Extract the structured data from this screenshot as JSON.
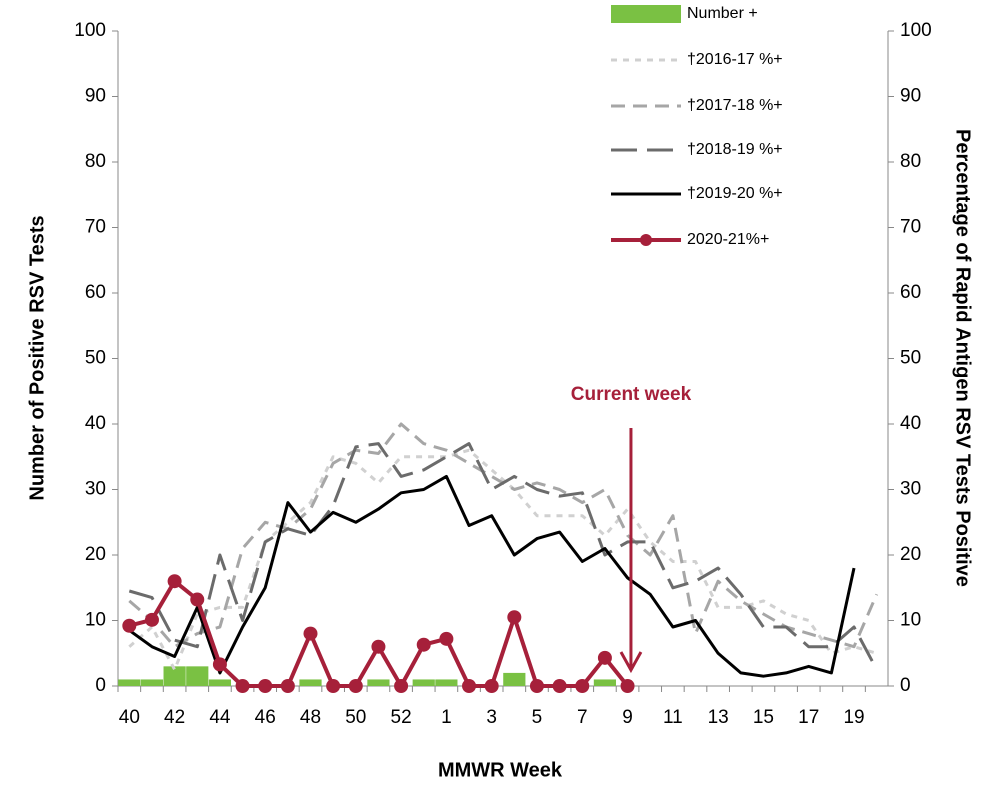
{
  "chart_data": {
    "type": "combo",
    "y_label": "Number of Positive RSV Tests",
    "y2_label": "Percentage of Rapid Antigen RSV Tests Positive",
    "x_label": "MMWR Week",
    "categories": [
      "40",
      null,
      "42",
      null,
      "44",
      null,
      "46",
      null,
      "48",
      null,
      "50",
      null,
      "52",
      null,
      "1",
      null,
      "3",
      null,
      "5",
      null,
      "7",
      null,
      "9",
      null,
      "11",
      null,
      "13",
      null,
      "15",
      null,
      "17",
      null,
      "19",
      null
    ],
    "ylim": [
      0,
      100
    ],
    "yticks": [
      0,
      10,
      20,
      30,
      40,
      50,
      60,
      70,
      80,
      90,
      100
    ],
    "y2lim": [
      0,
      100
    ],
    "y2ticks": [
      0,
      10,
      20,
      30,
      40,
      50,
      60,
      70,
      80,
      90,
      100
    ],
    "legend": "top-right",
    "annotation": {
      "text": "Current week",
      "x": "9",
      "color": "#a6203a"
    },
    "series": [
      {
        "name": "Number +",
        "type": "bar",
        "color": "#7ac143",
        "values": [
          1,
          1,
          3,
          3,
          1,
          0,
          0,
          0,
          1,
          0,
          0,
          1,
          0,
          1,
          1,
          0,
          0,
          2,
          0,
          0,
          0,
          1,
          0,
          null,
          null,
          null,
          null,
          null,
          null,
          null,
          null,
          null,
          null,
          null
        ]
      },
      {
        "name": "†2016-17 %+",
        "type": "line",
        "axis": "y2",
        "color": "#d0d0d0",
        "line_style": "dotted",
        "values": [
          6,
          9,
          2.5,
          11,
          12,
          12,
          22,
          25,
          28,
          35,
          34,
          31,
          35,
          35,
          35,
          36,
          33,
          30,
          26,
          26,
          26,
          23,
          27,
          22,
          19,
          19,
          12,
          12,
          13,
          11,
          10,
          5,
          6,
          5
        ]
      },
      {
        "name": "†2017-18 %+",
        "type": "line",
        "axis": "y2",
        "color": "#a6a6a6",
        "line_style": "dashed",
        "values": [
          13,
          10,
          6,
          8,
          9,
          21,
          25,
          24,
          27,
          34,
          36,
          35.5,
          40,
          37,
          36,
          34,
          32,
          30,
          31,
          30,
          28,
          30,
          23,
          20,
          26,
          8,
          16,
          13,
          11,
          9,
          8,
          7,
          6,
          14
        ]
      },
      {
        "name": "†2018-19 %+",
        "type": "line",
        "axis": "y2",
        "color": "#6b6b6b",
        "line_style": "long-dash",
        "values": [
          14.5,
          13.5,
          7,
          6,
          20,
          10,
          22,
          24,
          23,
          27.5,
          36.5,
          37,
          32,
          33,
          35,
          37,
          30,
          32,
          30,
          29,
          29.5,
          20,
          22,
          22,
          15,
          16,
          18,
          14,
          9,
          9,
          6,
          6,
          9,
          2.5
        ]
      },
      {
        "name": "†2019-20 %+",
        "type": "line",
        "axis": "y2",
        "color": "#000000",
        "line_style": "solid",
        "values": [
          8.5,
          6,
          4.5,
          12,
          2,
          9,
          15,
          28,
          23.5,
          26.5,
          25,
          27,
          29.5,
          30,
          32,
          24.5,
          26,
          20,
          22.5,
          23.5,
          19,
          21,
          16.5,
          14,
          9,
          10,
          5,
          2,
          1.5,
          2,
          3,
          2,
          18,
          null
        ]
      },
      {
        "name": "2020-21%+",
        "type": "line",
        "axis": "y2",
        "color": "#a6203a",
        "line_style": "solid",
        "marker": "circle",
        "values": [
          9.2,
          10.1,
          16,
          13.2,
          3.3,
          0,
          0,
          0,
          8,
          0,
          0,
          6,
          0,
          6.3,
          7.2,
          0,
          0,
          10.5,
          0,
          0,
          0,
          4.3,
          0,
          null,
          null,
          null,
          null,
          null,
          null,
          null,
          null,
          null,
          null,
          null
        ]
      }
    ]
  }
}
